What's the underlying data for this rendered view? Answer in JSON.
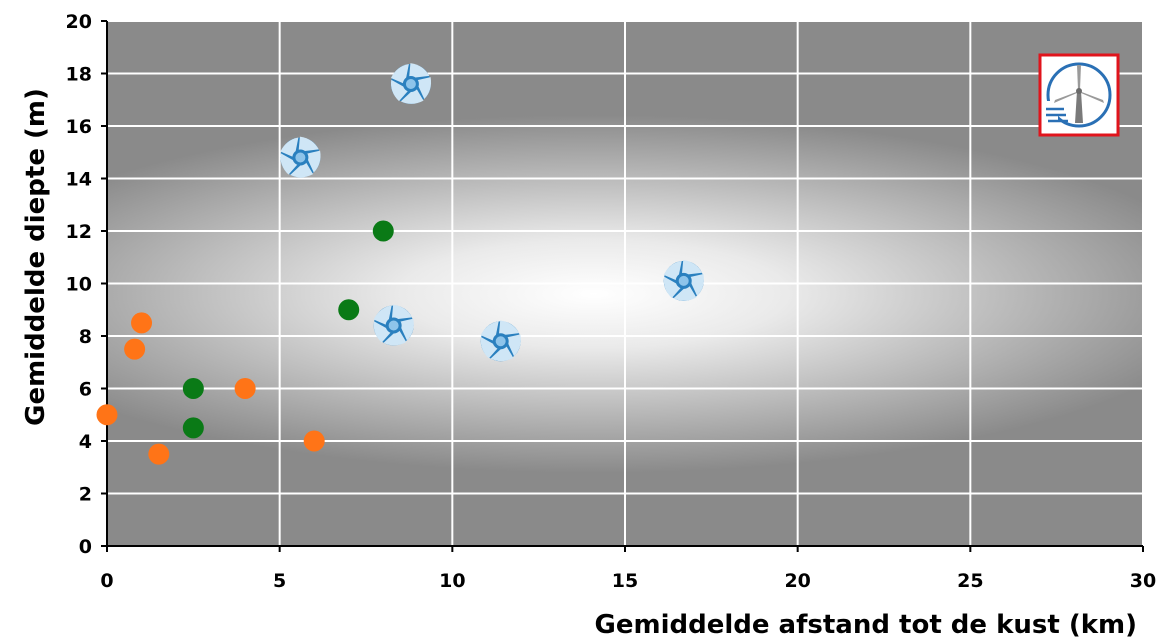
{
  "chart_data": {
    "type": "scatter",
    "xlabel": "Gemiddelde afstand tot de kust (km)",
    "ylabel": "Gemiddelde diepte (m)",
    "xlim": [
      0,
      30
    ],
    "ylim": [
      0,
      20
    ],
    "x_ticks": [
      0,
      5,
      10,
      15,
      20,
      25,
      30
    ],
    "y_ticks": [
      0,
      2,
      4,
      6,
      8,
      10,
      12,
      14,
      16,
      18,
      20
    ],
    "grid": true,
    "legend": "none",
    "background": "radial gradient, light center to dark gray edges",
    "logo_icon": "wind-turbine-icon",
    "series": [
      {
        "marker": "circle",
        "color": "#ff7417",
        "points": [
          [
            0,
            5.0
          ],
          [
            0.8,
            7.5
          ],
          [
            1.0,
            8.5
          ],
          [
            1.5,
            3.5
          ],
          [
            4.0,
            6.0
          ],
          [
            6.0,
            4.0
          ]
        ]
      },
      {
        "marker": "circle",
        "color": "#0a7a16",
        "points": [
          [
            2.5,
            6.0
          ],
          [
            2.5,
            4.5
          ],
          [
            7.0,
            9.0
          ],
          [
            8.0,
            12.0
          ]
        ]
      },
      {
        "marker": "pinwheel",
        "color": "#2a80bf",
        "points": [
          [
            5.6,
            14.8
          ],
          [
            8.8,
            17.6
          ],
          [
            8.3,
            8.4
          ],
          [
            11.4,
            7.8
          ],
          [
            16.7,
            10.1
          ]
        ]
      }
    ]
  }
}
